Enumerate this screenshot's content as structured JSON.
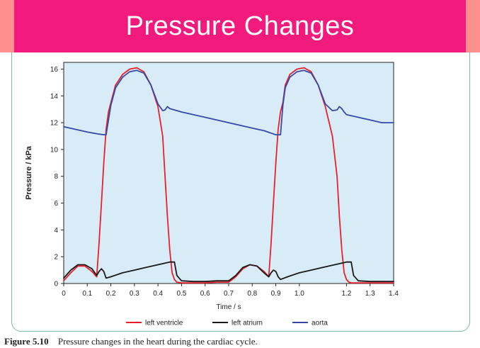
{
  "slide": {
    "title": "Pressure Changes",
    "caption_number": "Figure 5.10",
    "caption_text": "Pressure changes in the heart during the cardiac cycle."
  },
  "colors": {
    "title_bar": "#f21a7c",
    "side_bands": "#ff8f8f",
    "plot_background": "#d8ecf8",
    "left_ventricle": "#e8202a",
    "left_atrium": "#1a1a1a",
    "aorta": "#3548a8"
  },
  "chart_data": {
    "type": "line",
    "title": "",
    "xlabel": "Time / s",
    "ylabel": "Pressure / kPa",
    "xlim": [
      0,
      1.4
    ],
    "ylim": [
      0,
      16.5
    ],
    "x_ticks": [
      0,
      0.1,
      0.2,
      0.3,
      0.4,
      0.5,
      0.6,
      0.7,
      0.8,
      0.9,
      1.0,
      1.2,
      1.3,
      1.4
    ],
    "x_tick_labels": [
      "0",
      "0.1",
      "0.2",
      "0.3",
      "0.4",
      "0.5",
      "0.6",
      "0.7",
      "0.8",
      "0.9",
      "1.0",
      "1.2",
      "1.3",
      "1.4"
    ],
    "y_ticks": [
      0,
      2,
      4,
      6,
      8,
      10,
      12,
      14,
      16
    ],
    "y_tick_labels": [
      "0",
      "2",
      "4",
      "6",
      "8",
      "10",
      "12",
      "14",
      "16"
    ],
    "grid": false,
    "legend_position": "bottom",
    "series": [
      {
        "name": "left ventricle",
        "color_key": "left_ventricle",
        "x": [
          0,
          0.03,
          0.06,
          0.09,
          0.12,
          0.14,
          0.15,
          0.16,
          0.17,
          0.18,
          0.19,
          0.2,
          0.22,
          0.25,
          0.28,
          0.31,
          0.34,
          0.37,
          0.4,
          0.42,
          0.43,
          0.44,
          0.45,
          0.46,
          0.47,
          0.48,
          0.5,
          0.55,
          0.6,
          0.65,
          0.7,
          0.73,
          0.76,
          0.79,
          0.82,
          0.85,
          0.87,
          0.88,
          0.89,
          0.9,
          0.91,
          0.92,
          0.93,
          0.94,
          0.96,
          0.99,
          1.02,
          1.05,
          1.08,
          1.11,
          1.14,
          1.16,
          1.17,
          1.18,
          1.19,
          1.2,
          1.21,
          1.22,
          1.24,
          1.27,
          1.3,
          1.35,
          1.4
        ],
        "y": [
          0.2,
          0.8,
          1.3,
          1.3,
          0.9,
          0.5,
          3.0,
          6.0,
          9.0,
          11.5,
          12.8,
          13.5,
          14.8,
          15.6,
          16.0,
          16.1,
          15.8,
          14.8,
          13.2,
          11.0,
          8.0,
          5.0,
          2.5,
          0.8,
          0.3,
          0.1,
          0.05,
          0.05,
          0.05,
          0.1,
          0.1,
          0.5,
          1.1,
          1.4,
          1.3,
          0.9,
          0.5,
          3.0,
          6.0,
          9.0,
          11.5,
          12.8,
          13.5,
          14.8,
          15.6,
          16.0,
          16.1,
          15.8,
          14.8,
          13.2,
          11.0,
          8.0,
          5.0,
          2.5,
          0.8,
          0.3,
          0.1,
          0.05,
          0.05,
          0.05,
          0.05,
          0.05,
          0.05
        ]
      },
      {
        "name": "left atrium",
        "color_key": "left_atrium",
        "x": [
          0,
          0.03,
          0.06,
          0.09,
          0.12,
          0.14,
          0.15,
          0.16,
          0.17,
          0.18,
          0.2,
          0.25,
          0.3,
          0.35,
          0.4,
          0.45,
          0.47,
          0.48,
          0.5,
          0.55,
          0.6,
          0.65,
          0.7,
          0.73,
          0.76,
          0.79,
          0.82,
          0.85,
          0.87,
          0.88,
          0.89,
          0.9,
          0.91,
          0.92,
          0.95,
          1.0,
          1.05,
          1.1,
          1.15,
          1.2,
          1.22,
          1.23,
          1.25,
          1.3,
          1.35,
          1.4
        ],
        "y": [
          0.4,
          1.0,
          1.4,
          1.4,
          1.1,
          0.6,
          0.9,
          1.1,
          0.9,
          0.4,
          0.5,
          0.8,
          1.0,
          1.2,
          1.4,
          1.6,
          1.6,
          0.6,
          0.2,
          0.15,
          0.15,
          0.2,
          0.2,
          0.6,
          1.2,
          1.4,
          1.3,
          0.8,
          0.5,
          0.8,
          1.0,
          0.9,
          0.5,
          0.3,
          0.5,
          0.8,
          1.0,
          1.2,
          1.4,
          1.6,
          1.6,
          0.6,
          0.2,
          0.15,
          0.15,
          0.15
        ]
      },
      {
        "name": "aorta",
        "color_key": "aorta",
        "x": [
          0,
          0.05,
          0.1,
          0.15,
          0.17,
          0.18,
          0.2,
          0.22,
          0.25,
          0.28,
          0.31,
          0.34,
          0.37,
          0.4,
          0.42,
          0.43,
          0.44,
          0.45,
          0.5,
          0.6,
          0.7,
          0.8,
          0.85,
          0.9,
          0.91,
          0.92,
          0.93,
          0.94,
          0.96,
          0.99,
          1.02,
          1.05,
          1.08,
          1.11,
          1.14,
          1.16,
          1.17,
          1.18,
          1.19,
          1.2,
          1.25,
          1.3,
          1.35,
          1.4
        ],
        "y": [
          11.7,
          11.5,
          11.3,
          11.15,
          11.1,
          11.1,
          13.3,
          14.6,
          15.4,
          15.8,
          15.9,
          15.7,
          14.8,
          13.4,
          12.9,
          12.95,
          13.2,
          13.05,
          12.8,
          12.4,
          12.0,
          11.6,
          11.4,
          11.1,
          11.1,
          11.1,
          13.3,
          14.6,
          15.4,
          15.8,
          15.9,
          15.7,
          14.8,
          13.4,
          12.9,
          12.95,
          13.2,
          13.05,
          12.8,
          12.6,
          12.4,
          12.2,
          12.0,
          12.0
        ]
      }
    ]
  }
}
